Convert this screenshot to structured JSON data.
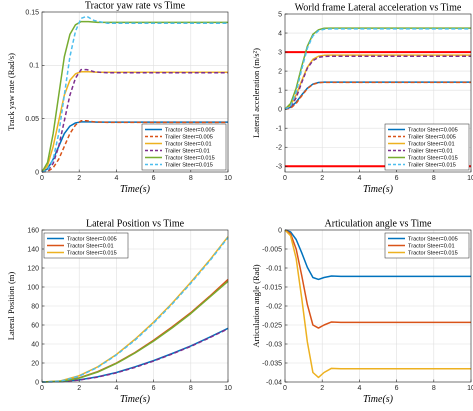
{
  "colors": {
    "blue": "#0072bd",
    "orange": "#d95319",
    "yellow": "#edb120",
    "purple": "#7e2f8e",
    "green": "#77ac30",
    "cyan": "#4dbeee",
    "red": "#ff0000"
  },
  "chart_data": [
    {
      "type": "line",
      "title": "Tractor yaw rate vs Time",
      "xlabel": "Time(s)",
      "ylabel": "Track yaw rate (Rad/s)",
      "xlim": [
        0,
        10
      ],
      "ylim": [
        0,
        0.15
      ],
      "xticks": [
        "0",
        "2",
        "4",
        "6",
        "8",
        "10"
      ],
      "yticks": [
        "0",
        "0.05",
        "0.1",
        "0.15"
      ],
      "ytick_values": [
        0,
        0.05,
        0.1,
        0.15
      ],
      "grid": true,
      "legend_position": "bottom-right",
      "series": [
        {
          "name": "Tractor Steer=0.005",
          "color": "#0072bd",
          "dash": "solid",
          "x": [
            0,
            0.3,
            0.6,
            0.9,
            1.2,
            1.5,
            1.8,
            2.1,
            2.5,
            3,
            4,
            10
          ],
          "y": [
            0,
            0.003,
            0.012,
            0.024,
            0.036,
            0.043,
            0.046,
            0.047,
            0.047,
            0.0468,
            0.0468,
            0.0468
          ]
        },
        {
          "name": "Trailer Steer=0.005",
          "color": "#d95319",
          "dash": "dashed",
          "x": [
            0,
            0.3,
            0.6,
            0.9,
            1.2,
            1.5,
            1.8,
            2.1,
            2.4,
            2.8,
            3.5,
            10
          ],
          "y": [
            0,
            0.0005,
            0.004,
            0.012,
            0.024,
            0.036,
            0.044,
            0.048,
            0.048,
            0.047,
            0.0465,
            0.0465
          ]
        },
        {
          "name": "Tractor Steer=0.01",
          "color": "#edb120",
          "dash": "solid",
          "x": [
            0,
            0.3,
            0.6,
            0.9,
            1.2,
            1.5,
            1.8,
            2.1,
            2.5,
            3,
            4,
            10
          ],
          "y": [
            0,
            0.006,
            0.024,
            0.048,
            0.072,
            0.086,
            0.092,
            0.094,
            0.094,
            0.0935,
            0.0935,
            0.0935
          ]
        },
        {
          "name": "Trailer Steer=0.01",
          "color": "#7e2f8e",
          "dash": "dashed",
          "x": [
            0,
            0.3,
            0.6,
            0.9,
            1.2,
            1.5,
            1.8,
            2.1,
            2.4,
            2.8,
            3.5,
            10
          ],
          "y": [
            0,
            0.001,
            0.008,
            0.024,
            0.048,
            0.072,
            0.088,
            0.096,
            0.096,
            0.094,
            0.093,
            0.093
          ]
        },
        {
          "name": "Tractor Steer=0.015",
          "color": "#77ac30",
          "dash": "solid",
          "x": [
            0,
            0.3,
            0.6,
            0.9,
            1.2,
            1.5,
            1.8,
            2.1,
            2.5,
            3,
            4,
            10
          ],
          "y": [
            0,
            0.009,
            0.036,
            0.072,
            0.108,
            0.129,
            0.138,
            0.141,
            0.141,
            0.1403,
            0.1403,
            0.1403
          ]
        },
        {
          "name": "Trailer Steer=0.015",
          "color": "#4dbeee",
          "dash": "dashed",
          "x": [
            0,
            0.3,
            0.6,
            0.9,
            1.2,
            1.5,
            1.8,
            2.1,
            2.4,
            2.8,
            3.5,
            10
          ],
          "y": [
            0,
            0.0015,
            0.012,
            0.036,
            0.072,
            0.108,
            0.132,
            0.144,
            0.146,
            0.142,
            0.1395,
            0.1395
          ]
        }
      ]
    },
    {
      "type": "line",
      "title": "World frame Lateral acceleration vs Time",
      "xlabel": "Time(s)",
      "ylabel": "Lateral acceleration (m/s²)",
      "xlim": [
        0,
        10
      ],
      "ylim": [
        -3.3,
        5
      ],
      "xticks": [
        "0",
        "2",
        "4",
        "6",
        "8",
        "10"
      ],
      "yticks": [
        "-3",
        "-2",
        "-1",
        "0",
        "1",
        "2",
        "3",
        "4",
        "5"
      ],
      "ytick_values": [
        -3,
        -2,
        -1,
        0,
        1,
        2,
        3,
        4,
        5
      ],
      "grid": true,
      "legend_position": "bottom-right",
      "series": [
        {
          "name": "Tractor Steer=0.005",
          "color": "#0072bd",
          "dash": "solid",
          "x": [
            0,
            0.3,
            0.6,
            0.9,
            1.2,
            1.5,
            1.8,
            2.1,
            2.5,
            3,
            4,
            10
          ],
          "y": [
            0,
            0.1,
            0.37,
            0.75,
            1.1,
            1.32,
            1.4,
            1.42,
            1.42,
            1.42,
            1.42,
            1.42
          ]
        },
        {
          "name": "Trailer Steer=0.005",
          "color": "#d95319",
          "dash": "dashed",
          "x": [
            0,
            0.3,
            0.6,
            0.9,
            1.2,
            1.5,
            1.8,
            2.1,
            2.5,
            3,
            4,
            10
          ],
          "y": [
            0,
            0.05,
            0.3,
            0.7,
            1.08,
            1.3,
            1.39,
            1.41,
            1.41,
            1.41,
            1.41,
            1.41
          ]
        },
        {
          "name": "Tractor Steer=0.01",
          "color": "#edb120",
          "dash": "solid",
          "x": [
            0,
            0.3,
            0.6,
            0.9,
            1.2,
            1.5,
            1.8,
            2.1,
            2.5,
            3,
            4,
            10
          ],
          "y": [
            0,
            0.2,
            0.75,
            1.5,
            2.2,
            2.62,
            2.78,
            2.83,
            2.84,
            2.84,
            2.84,
            2.84
          ]
        },
        {
          "name": "Trailer Steer=0.01",
          "color": "#7e2f8e",
          "dash": "dashed",
          "x": [
            0,
            0.3,
            0.6,
            0.9,
            1.2,
            1.5,
            1.8,
            2.1,
            2.5,
            3,
            4,
            10
          ],
          "y": [
            0,
            0.1,
            0.6,
            1.4,
            2.15,
            2.55,
            2.72,
            2.77,
            2.78,
            2.78,
            2.78,
            2.78
          ]
        },
        {
          "name": "Tractor Steer=0.015",
          "color": "#77ac30",
          "dash": "solid",
          "x": [
            0,
            0.3,
            0.6,
            0.9,
            1.2,
            1.5,
            1.8,
            2.1,
            2.5,
            3,
            4,
            10
          ],
          "y": [
            0,
            0.3,
            1.1,
            2.25,
            3.3,
            3.93,
            4.17,
            4.25,
            4.26,
            4.26,
            4.26,
            4.26
          ]
        },
        {
          "name": "Trailer Steer=0.015",
          "color": "#4dbeee",
          "dash": "dashed",
          "x": [
            0,
            0.3,
            0.6,
            0.9,
            1.2,
            1.5,
            1.8,
            2.1,
            2.5,
            3,
            4,
            10
          ],
          "y": [
            0,
            0.15,
            0.9,
            2.1,
            3.2,
            3.85,
            4.12,
            4.2,
            4.22,
            4.22,
            4.22,
            4.22
          ]
        }
      ],
      "reference_lines": [
        {
          "y": 3,
          "color": "#ff0000"
        },
        {
          "y": -3,
          "color": "#ff0000"
        }
      ]
    },
    {
      "type": "line",
      "title": "Lateral Position vs Time",
      "xlabel": "Time(s)",
      "ylabel": "Lateral Position (m)",
      "xlim": [
        0,
        10
      ],
      "ylim": [
        0,
        160
      ],
      "xticks": [
        "0",
        "2",
        "4",
        "6",
        "8",
        "10"
      ],
      "yticks": [
        "0",
        "20",
        "40",
        "60",
        "80",
        "100",
        "120",
        "140",
        "160"
      ],
      "ytick_values": [
        0,
        20,
        40,
        60,
        80,
        100,
        120,
        140,
        160
      ],
      "grid": true,
      "legend_position": "top-left",
      "series": [
        {
          "name": "Tractor Steer=0.005",
          "color": "#0072bd",
          "dash": "solid",
          "x": [
            0,
            1,
            2,
            3,
            4,
            5,
            6,
            7,
            8,
            9,
            10
          ],
          "y": [
            0,
            0.4,
            2.2,
            5.5,
            10,
            16,
            22.5,
            30,
            38,
            47,
            56.5
          ]
        },
        {
          "name": "Tractor Steer=0.01",
          "color": "#d95319",
          "dash": "solid",
          "x": [
            0,
            1,
            2,
            3,
            4,
            5,
            6,
            7,
            8,
            9,
            10
          ],
          "y": [
            0,
            0.8,
            4.4,
            11,
            20,
            31,
            44,
            58,
            73,
            90,
            108
          ]
        },
        {
          "name": "Tractor Steer=0.015",
          "color": "#edb120",
          "dash": "solid",
          "x": [
            0,
            1,
            2,
            3,
            4,
            5,
            6,
            7,
            8,
            9,
            10
          ],
          "y": [
            0,
            1.2,
            6.6,
            16,
            29,
            45,
            63,
            83,
            105,
            128,
            153
          ]
        },
        {
          "color": "#7e2f8e",
          "dash": "dashed",
          "x": [
            0,
            1,
            2,
            3,
            4,
            5,
            6,
            7,
            8,
            9,
            10
          ],
          "y": [
            0,
            0.3,
            2,
            5.2,
            9.6,
            15.4,
            22,
            29.5,
            37.5,
            46.5,
            56
          ]
        },
        {
          "color": "#77ac30",
          "dash": "solid",
          "x": [
            0,
            1,
            2,
            3,
            4,
            5,
            6,
            7,
            8,
            9,
            10
          ],
          "y": [
            0,
            0.6,
            4,
            10.5,
            19.5,
            30.5,
            43,
            57,
            72,
            89,
            106
          ]
        },
        {
          "color": "#4dbeee",
          "dash": "dashed",
          "x": [
            0,
            1,
            2,
            3,
            4,
            5,
            6,
            7,
            8,
            9,
            10
          ],
          "y": [
            0,
            0.9,
            6.2,
            15.5,
            28.5,
            44,
            62,
            82,
            104,
            127,
            152
          ]
        }
      ]
    },
    {
      "type": "line",
      "title": "Articulation angle vs Time",
      "xlabel": "Time(s)",
      "ylabel": "Articulation angle (Rad)",
      "xlim": [
        0,
        10
      ],
      "ylim": [
        -0.04,
        0
      ],
      "xticks": [
        "0",
        "2",
        "4",
        "6",
        "8",
        "10"
      ],
      "yticks": [
        "-0.04",
        "-0.035",
        "-0.03",
        "-0.025",
        "-0.02",
        "-0.015",
        "-0.01",
        "-0.005",
        "0"
      ],
      "ytick_values": [
        -0.04,
        -0.035,
        -0.03,
        -0.025,
        -0.02,
        -0.015,
        -0.01,
        -0.005,
        0
      ],
      "grid": true,
      "legend_position": "top-right",
      "series": [
        {
          "name": "Tractor Steer=0.005",
          "color": "#0072bd",
          "dash": "solid",
          "x": [
            0,
            0.3,
            0.6,
            0.9,
            1.2,
            1.5,
            1.8,
            2.1,
            2.5,
            3,
            4,
            10
          ],
          "y": [
            0,
            -0.0005,
            -0.0025,
            -0.006,
            -0.0098,
            -0.0125,
            -0.013,
            -0.0125,
            -0.0121,
            -0.0122,
            -0.0122,
            -0.0122
          ]
        },
        {
          "name": "Tractor Steer=0.01",
          "color": "#d95319",
          "dash": "solid",
          "x": [
            0,
            0.3,
            0.6,
            0.9,
            1.2,
            1.5,
            1.8,
            2.1,
            2.5,
            3,
            4,
            10
          ],
          "y": [
            0,
            -0.001,
            -0.005,
            -0.012,
            -0.0196,
            -0.025,
            -0.0258,
            -0.025,
            -0.0242,
            -0.0243,
            -0.0243,
            -0.0243
          ]
        },
        {
          "name": "Tractor Steer=0.015",
          "color": "#edb120",
          "dash": "solid",
          "x": [
            0,
            0.3,
            0.6,
            0.9,
            1.2,
            1.5,
            1.8,
            2.1,
            2.5,
            3,
            4,
            10
          ],
          "y": [
            0,
            -0.0015,
            -0.0075,
            -0.018,
            -0.0294,
            -0.0375,
            -0.0388,
            -0.0375,
            -0.0364,
            -0.0365,
            -0.0365,
            -0.0365
          ]
        }
      ]
    }
  ]
}
